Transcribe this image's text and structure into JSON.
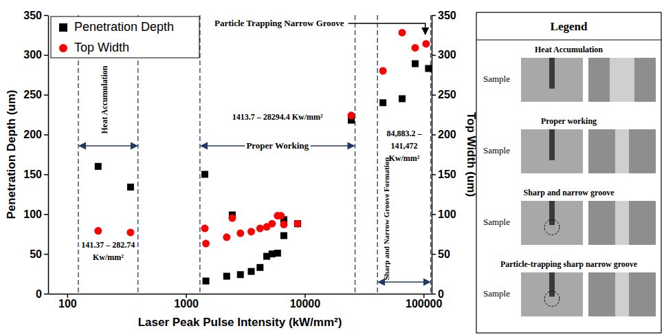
{
  "chart_data": {
    "type": "scatter",
    "xlabel": "Laser Peak Pulse Intensity (kW/mm²)",
    "ylabel": "Penetration Depth (um)",
    "y2label": "Top Width (um)",
    "log": "x",
    "xlim": [
      69,
      117000
    ],
    "xticks": [
      100,
      1000,
      10000,
      100000
    ],
    "ylim": [
      0,
      350
    ],
    "yticks": [
      0,
      50,
      100,
      150,
      200,
      250,
      300,
      350
    ],
    "y2lim": [
      0,
      350
    ],
    "y2ticks": [
      0,
      50,
      100,
      150,
      200,
      250,
      300,
      350
    ],
    "legend": "upper left",
    "series": [
      {
        "name": "Penetration Depth",
        "color": "#000000",
        "marker": "square",
        "x": [
          182,
          341,
          1440,
          1470,
          2200,
          2450,
          2870,
          3540,
          4200,
          4780,
          5300,
          5900,
          6660,
          6660,
          8700,
          24600,
          45500,
          66000,
          85000,
          110000
        ],
        "values": [
          160,
          134,
          150,
          16,
          22,
          99,
          24,
          28,
          33,
          47,
          50,
          51,
          73,
          93,
          88,
          218,
          240,
          245,
          289,
          283
        ]
      },
      {
        "name": "Top Width",
        "color": "#ff0000",
        "marker": "circle",
        "axis": "y2",
        "x": [
          182,
          341,
          1440,
          1470,
          2200,
          2450,
          2870,
          3540,
          4200,
          4780,
          5300,
          5900,
          6300,
          6660,
          8700,
          24600,
          45500,
          66000,
          85000,
          105000
        ],
        "values": [
          79,
          77,
          82,
          63,
          71,
          95,
          76,
          78,
          82,
          84,
          88,
          98,
          98,
          87,
          88,
          224,
          280,
          328,
          309,
          314
        ]
      }
    ],
    "vlines": [
      124,
      394,
      1310,
      26500,
      40900,
      115000
    ],
    "annotations": [
      "Heat Accumulation",
      "141.37 – 282.74 Kw/mm²",
      "Proper Working",
      "1413.7 – 28294.4 Kw/mm²",
      "Particle Trapping Narrow Groove",
      "84,883.2 – 141,472 Kw/mm²",
      "Sharp and Narrow Groove Formation"
    ]
  },
  "legend_panel": {
    "title": "Legend",
    "items": [
      {
        "title": "Heat Accumulation",
        "label": "Sample"
      },
      {
        "title": "Proper working",
        "label": "Sample"
      },
      {
        "title": "Sharp and narrow groove",
        "label": "Sample"
      },
      {
        "title": "Particle-trapping sharp narrow groove",
        "label": "Sample"
      }
    ]
  }
}
